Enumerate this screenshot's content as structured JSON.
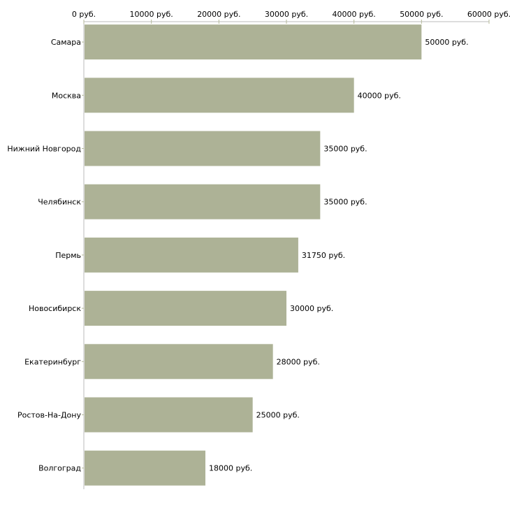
{
  "chart_data": {
    "type": "bar",
    "orientation": "horizontal",
    "title": "",
    "xlabel": "",
    "ylabel": "",
    "xlim": [
      0,
      60000
    ],
    "x_ticks": [
      0,
      10000,
      20000,
      30000,
      40000,
      50000,
      60000
    ],
    "x_tick_labels": [
      "0 руб.",
      "10000 руб.",
      "20000 руб.",
      "30000 руб.",
      "40000 руб.",
      "50000 руб.",
      "60000 руб."
    ],
    "categories": [
      "Самара",
      "Москва",
      "Нижний Новгород",
      "Челябинск",
      "Пермь",
      "Новосибирск",
      "Екатеринбург",
      "Ростов-На-Дону",
      "Волгоград"
    ],
    "values": [
      50000,
      40000,
      35000,
      35000,
      31750,
      30000,
      28000,
      25000,
      18000
    ],
    "data_labels": [
      "50000 руб.",
      "40000 руб.",
      "35000 руб.",
      "35000 руб.",
      "31750 руб.",
      "30000 руб.",
      "28000 руб.",
      "25000 руб.",
      "18000 руб."
    ],
    "grid": false,
    "legend": "none",
    "colors": {
      "bar": "#adb296",
      "axis": "#bbbbbb",
      "tick": "#b5ba9a"
    }
  }
}
